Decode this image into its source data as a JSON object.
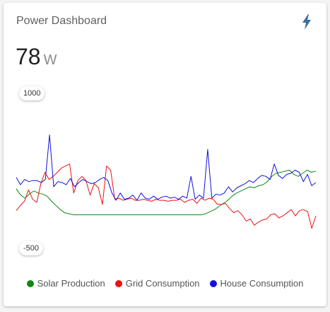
{
  "card": {
    "title": "Power Dashboard",
    "icon": "flash-icon",
    "value": "78",
    "unit": "W"
  },
  "chart_data": {
    "type": "line",
    "ylim": [
      -500,
      1000
    ],
    "tick_labels": [
      "1000",
      "-500"
    ],
    "series": [
      {
        "name": "Solar Production",
        "color": "#118811",
        "values": [
          80,
          20,
          -10,
          30,
          60,
          40,
          30,
          10,
          -40,
          -80,
          -120,
          -150,
          -160,
          -170,
          -170,
          -170,
          -170,
          -170,
          -170,
          -170,
          -170,
          -170,
          -170,
          -170,
          -170,
          -170,
          -170,
          -170,
          -170,
          -170,
          -170,
          -170,
          -170,
          -170,
          -170,
          -170,
          -170,
          -170,
          -170,
          -170,
          -170,
          -170,
          -170,
          -160,
          -140,
          -120,
          -90,
          -60,
          -30,
          10,
          40,
          60,
          80,
          100,
          90,
          110,
          120,
          150,
          200,
          230,
          240,
          250,
          260,
          220,
          200,
          230,
          260,
          240,
          250
        ]
      },
      {
        "name": "Grid Consumption",
        "color": "#ee1111",
        "values": [
          -130,
          -80,
          -40,
          70,
          -20,
          -50,
          130,
          240,
          170,
          200,
          240,
          280,
          300,
          320,
          40,
          160,
          200,
          160,
          20,
          130,
          90,
          -70,
          300,
          260,
          -20,
          -10,
          -30,
          -20,
          -10,
          -30,
          -30,
          -20,
          -30,
          -40,
          -20,
          -30,
          -30,
          -40,
          -30,
          -30,
          -20,
          -50,
          -30,
          -20,
          -60,
          -10,
          -30,
          -10,
          -20,
          -70,
          -70,
          -60,
          -110,
          -150,
          -130,
          -170,
          -230,
          -210,
          -270,
          -240,
          -220,
          -210,
          -170,
          -160,
          -200,
          -180,
          -150,
          -120,
          -180,
          -130,
          -120,
          -140,
          -300,
          -180
        ]
      },
      {
        "name": "House Consumption",
        "color": "#1111dd",
        "values": [
          190,
          120,
          170,
          150,
          160,
          160,
          140,
          170,
          600,
          100,
          150,
          140,
          120,
          180,
          100,
          140,
          170,
          150,
          130,
          140,
          170,
          190,
          160,
          40,
          -30,
          40,
          -20,
          -10,
          20,
          -30,
          40,
          -10,
          -20,
          10,
          -20,
          0,
          10,
          -10,
          0,
          -20,
          10,
          -10,
          200,
          -20,
          20,
          -10,
          460,
          -10,
          30,
          20,
          40,
          100,
          50,
          90,
          110,
          130,
          160,
          140,
          180,
          210,
          200,
          170,
          320,
          210,
          180,
          220,
          230,
          260,
          240,
          150,
          220,
          110,
          140
        ]
      }
    ]
  },
  "legend": [
    {
      "label": "Solar Production",
      "color": "#118811"
    },
    {
      "label": "Grid Consumption",
      "color": "#ee1111"
    },
    {
      "label": "House Consumption",
      "color": "#1111dd"
    }
  ]
}
